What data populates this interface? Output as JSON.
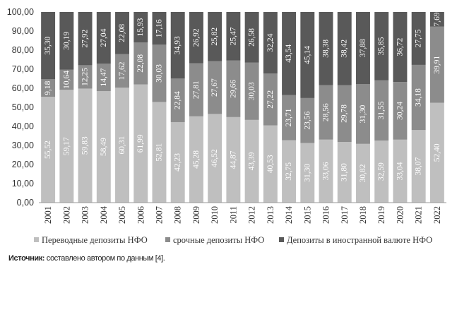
{
  "chart_data": {
    "type": "bar",
    "stacked": true,
    "categories": [
      "2001",
      "2002",
      "2003",
      "2004",
      "2005",
      "2006",
      "2007",
      "2008",
      "2009",
      "2010",
      "2011",
      "2012",
      "2013",
      "2014",
      "2015",
      "2016",
      "2017",
      "2018",
      "2019",
      "2020",
      "2021",
      "2022"
    ],
    "series": [
      {
        "name": "Переводные депозиты НФО",
        "color": "#bfbfbf",
        "label_color": "#ffffff",
        "values": [
          55.52,
          59.17,
          59.83,
          58.49,
          60.31,
          61.99,
          52.81,
          42.23,
          45.28,
          46.52,
          44.87,
          43.39,
          40.53,
          32.75,
          31.3,
          33.06,
          31.8,
          30.82,
          32.59,
          33.04,
          38.07,
          52.4
        ]
      },
      {
        "name": "срочные депозиты НФО",
        "color": "#8c8c8c",
        "label_color": "#ffffff",
        "values": [
          9.18,
          10.64,
          12.25,
          14.47,
          17.62,
          22.08,
          30.03,
          22.84,
          27.81,
          27.67,
          29.66,
          30.03,
          27.22,
          23.71,
          23.56,
          28.56,
          29.78,
          31.3,
          31.55,
          30.24,
          34.18,
          39.91
        ]
      },
      {
        "name": "Депозиты в иностранной валюте НФО",
        "color": "#595959",
        "label_color": "#ffffff",
        "values": [
          35.3,
          30.19,
          27.92,
          27.04,
          22.08,
          15.93,
          17.16,
          34.93,
          26.92,
          25.82,
          25.47,
          26.58,
          32.24,
          43.54,
          45.14,
          38.38,
          38.42,
          37.88,
          35.85,
          36.72,
          27.75,
          7.69
        ]
      }
    ],
    "value_labels": {
      "s0": [
        "55,52",
        "59,17",
        "59,83",
        "58,49",
        "60,31",
        "61,99",
        "52,81",
        "42,23",
        "45,28",
        "46,52",
        "44,87",
        "43,39",
        "40,53",
        "32,75",
        "31,30",
        "33,06",
        "31,80",
        "30,82",
        "32,59",
        "33,04",
        "38,07",
        "52,40"
      ],
      "s1": [
        "9,18",
        "10,64",
        "12,25",
        "14,47",
        "17,62",
        "22,08",
        "30,03",
        "22,84",
        "27,81",
        "27,67",
        "29,66",
        "30,03",
        "27,22",
        "23,71",
        "23,56",
        "28,56",
        "29,78",
        "31,30",
        "31,55",
        "30,24",
        "34,18",
        "39,91"
      ],
      "s2": [
        "35,30",
        "30,19",
        "27,92",
        "27,04",
        "22,08",
        "15,93",
        "17,16",
        "34,93",
        "26,92",
        "25,82",
        "25,47",
        "26,58",
        "32,24",
        "43,54",
        "45,14",
        "38,38",
        "38,42",
        "37,88",
        "35,85",
        "36,72",
        "27,75",
        "7,69"
      ]
    },
    "ylim": [
      0,
      100
    ],
    "yticks": [
      0,
      10,
      20,
      30,
      40,
      50,
      60,
      70,
      80,
      90,
      100
    ],
    "ytick_labels": [
      "0,00",
      "10,00",
      "20,00",
      "30,00",
      "40,00",
      "50,00",
      "60,00",
      "70,00",
      "80,00",
      "90,00",
      "100,00"
    ],
    "grid": false,
    "legend_position": "bottom"
  },
  "source": {
    "label": "Источник:",
    "text": " составлено автором по данным [4]."
  }
}
